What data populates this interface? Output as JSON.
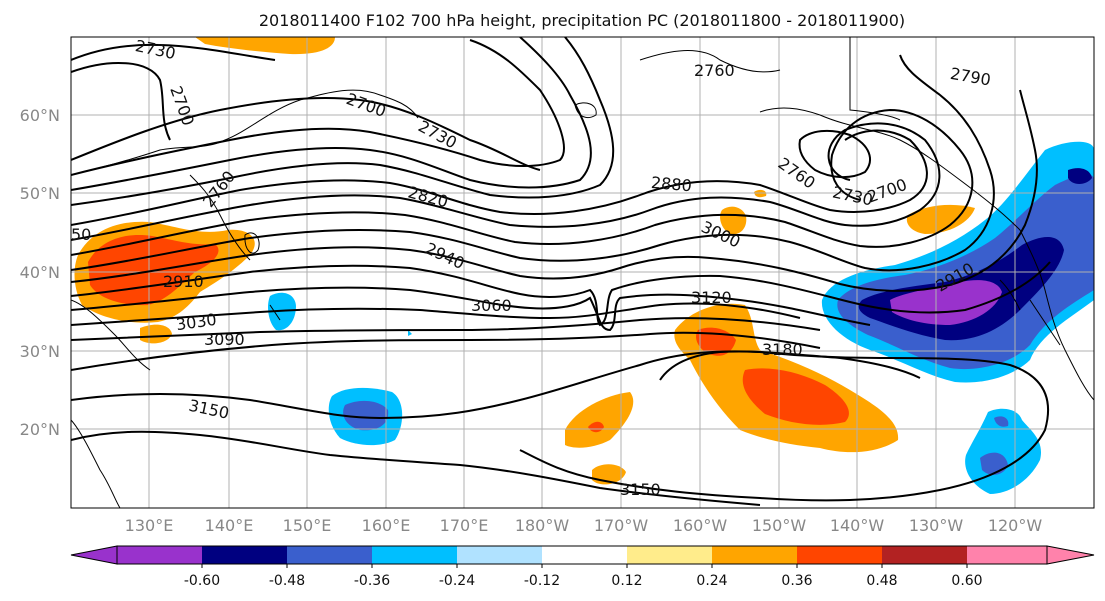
{
  "title": "2018011400 F102 700 hPa height, precipitation PC (2018011800 - 2018011900)",
  "lat_labels": [
    "60°N",
    "50°N",
    "40°N",
    "30°N",
    "20°N"
  ],
  "lon_labels": [
    "130°E",
    "140°E",
    "150°E",
    "160°E",
    "170°E",
    "180°W",
    "170°W",
    "160°W",
    "150°W",
    "140°W",
    "130°W",
    "120°W"
  ],
  "contour_labels": [
    {
      "text": "2730"
    },
    {
      "text": "2700"
    },
    {
      "text": "2700"
    },
    {
      "text": "2730"
    },
    {
      "text": "2760"
    },
    {
      "text": "2760"
    },
    {
      "text": "2790"
    },
    {
      "text": "2820"
    },
    {
      "text": "2880"
    },
    {
      "text": "2760"
    },
    {
      "text": "2730"
    },
    {
      "text": "2700"
    },
    {
      "text": "3000"
    },
    {
      "text": "2940"
    },
    {
      "text": "2910"
    },
    {
      "text": "3060"
    },
    {
      "text": "3120"
    },
    {
      "text": "3030"
    },
    {
      "text": "3090"
    },
    {
      "text": "3180"
    },
    {
      "text": "3150"
    },
    {
      "text": "3150"
    },
    {
      "text": "50"
    },
    {
      "text": "2910"
    }
  ],
  "colorbar": {
    "colors": [
      "#9932cc",
      "#000080",
      "#3a5fcd",
      "#00bfff",
      "#b0e2ff",
      "#ffffff",
      "#ffec8b",
      "#ffa500",
      "#ff4500",
      "#b22222",
      "#ff82ab"
    ],
    "labels": [
      "-0.60",
      "-0.48",
      "-0.36",
      "-0.24",
      "-0.12",
      "0.12",
      "0.24",
      "0.36",
      "0.48",
      "0.60"
    ]
  }
}
